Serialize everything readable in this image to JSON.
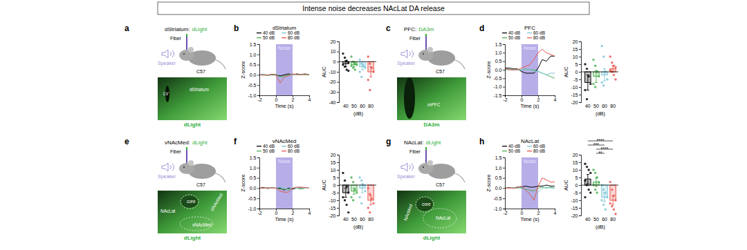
{
  "title": "Intense noise decreases NAcLat DA release",
  "schematics": [
    {
      "panel": "a",
      "header": "dStriatum:",
      "sensor": "dLight",
      "fiber": "Fiber",
      "speaker": "Speaker",
      "strain": "C57",
      "image_labels": [
        "LV",
        "dStriatum"
      ]
    },
    {
      "panel": "c",
      "header": "PFC:",
      "sensor": "DA3m",
      "fiber": "Fiber",
      "speaker": "Speaker",
      "strain": "C57",
      "image_labels": [
        "mPFC"
      ]
    },
    {
      "panel": "e",
      "header": "vNAcMed:",
      "sensor": "dLight",
      "fiber": "Fiber",
      "speaker": "Speaker",
      "strain": "C57",
      "image_labels": [
        "NAcLat",
        "core",
        "dNAcMed",
        "vNAcMed"
      ]
    },
    {
      "panel": "g",
      "header": "NAcLat:",
      "sensor": "dLight",
      "fiber": "Fiber",
      "speaker": "Speaker",
      "strain": "C57",
      "image_labels": [
        "NAcMed",
        "core",
        "NAcLat"
      ]
    }
  ],
  "chart_data": [
    {
      "panel": "b",
      "type": "line",
      "title": "dStriatum",
      "xlabel": "Time (s)",
      "ylabel": "Z-score",
      "legend": "top",
      "x": [
        -2,
        -1.5,
        -1,
        -0.5,
        0,
        0.5,
        1,
        1.5,
        2,
        2.5,
        3,
        3.5,
        4
      ],
      "xlim": [
        -2,
        4
      ],
      "xticks": [
        -2,
        0,
        2,
        4
      ],
      "ylim": [
        -1,
        1.5
      ],
      "yticks": [
        {
          "value": -1,
          "label": "-1.0"
        },
        -0.5,
        {
          "value": 0,
          "label": "0.0"
        },
        0.5,
        {
          "value": 1,
          "label": "1.0"
        },
        1.5
      ],
      "shade": {
        "label": "Noise",
        "x0": 0,
        "x1": 2
      },
      "series": [
        {
          "name": "40 dB",
          "color": "#000000",
          "values": [
            0,
            0.02,
            -0.02,
            0.03,
            0,
            -0.05,
            0,
            0.05,
            0,
            0.05,
            0.02,
            0.05,
            0
          ]
        },
        {
          "name": "50 dB",
          "color": "#4caf50",
          "values": [
            0,
            0,
            -0.03,
            0,
            0.02,
            -0.1,
            -0.05,
            0,
            0.03,
            0,
            0.02,
            0,
            0
          ]
        },
        {
          "name": "60 dB",
          "color": "#7cc6d6",
          "values": [
            0,
            0.02,
            0,
            -0.02,
            -0.02,
            -0.3,
            -0.15,
            -0.05,
            0,
            0.03,
            0,
            0.05,
            0.02
          ]
        },
        {
          "name": "80 dB",
          "color": "#e8574f",
          "values": [
            0,
            -0.02,
            0,
            0.02,
            0,
            -0.4,
            -0.1,
            -0.05,
            0.05,
            0.02,
            0,
            0.03,
            0.02
          ]
        }
      ]
    },
    {
      "panel": "b",
      "type": "bar",
      "xlabel": "(dB)",
      "ylabel": "AUC",
      "categories": [
        "40",
        "50",
        "60",
        "80"
      ],
      "values": [
        -2,
        -3,
        -5,
        -10
      ],
      "error": [
        3,
        2,
        3,
        5
      ],
      "points": [
        [
          8,
          4,
          1,
          -1,
          -3,
          -5,
          -8,
          -9
        ],
        [
          5,
          0,
          -2,
          -3,
          -4,
          -6,
          -8
        ],
        [
          2,
          -2,
          -4,
          -6,
          -10,
          -15
        ],
        [
          5,
          -2,
          -6,
          -10,
          -18,
          -28
        ]
      ],
      "colors": [
        "#000000",
        "#4caf50",
        "#7cc6d6",
        "#e8574f"
      ],
      "ylim": [
        -40,
        20
      ],
      "yticks": [
        -40,
        -30,
        -20,
        -10,
        0,
        10,
        20
      ]
    },
    {
      "panel": "d",
      "type": "line",
      "title": "PFC",
      "xlabel": "Time (s)",
      "ylabel": "Z-score",
      "legend": "top",
      "x": [
        -2,
        -1.5,
        -1,
        -0.5,
        0,
        0.5,
        1,
        1.5,
        2,
        2.5,
        3,
        3.5,
        4
      ],
      "xlim": [
        -2,
        4
      ],
      "xticks": [
        -2,
        0,
        2,
        4
      ],
      "ylim": [
        -1.5,
        1.5
      ],
      "yticks": [
        -1.5,
        {
          "value": -1,
          "label": "-1.0"
        },
        -0.5,
        {
          "value": 0,
          "label": "0.0"
        },
        0.5,
        {
          "value": 1,
          "label": "1.0"
        },
        1.5
      ],
      "shade": {
        "label": "Noise",
        "x0": 0,
        "x1": 2
      },
      "series": [
        {
          "name": "40 dB",
          "color": "#000000",
          "values": [
            0.1,
            0.1,
            0.05,
            0.05,
            -0.1,
            -0.2,
            -0.2,
            -0.2,
            0.1,
            0.6,
            0.5,
            0.8,
            0.8
          ]
        },
        {
          "name": "50 dB",
          "color": "#4caf50",
          "values": [
            0,
            0,
            0,
            0,
            0,
            0.05,
            0,
            0,
            -0.1,
            -0.2,
            -0.3,
            -0.4,
            -0.5
          ]
        },
        {
          "name": "60 dB",
          "color": "#7cc6d6",
          "values": [
            0,
            0.05,
            0,
            0,
            0,
            0,
            0,
            -0.1,
            -0.1,
            -0.2,
            -0.3,
            -0.2,
            -0.2
          ]
        },
        {
          "name": "80 dB",
          "color": "#e8574f",
          "values": [
            0.1,
            0,
            0,
            0,
            0.1,
            0.2,
            0.3,
            0.6,
            1.0,
            1.2,
            1.0,
            0.9,
            0.8
          ]
        }
      ]
    },
    {
      "panel": "d",
      "type": "bar",
      "xlabel": "(dB)",
      "ylabel": "AUC",
      "categories": [
        "40",
        "50",
        "60",
        "80"
      ],
      "values": [
        -7,
        -3,
        -2,
        2
      ],
      "error": [
        5,
        4,
        4,
        2
      ],
      "points": [
        [
          5,
          2,
          -3,
          -8,
          -12,
          -18
        ],
        [
          8,
          4,
          0,
          -3,
          -8,
          -10
        ],
        [
          17,
          10,
          0,
          -5,
          -7,
          -9
        ],
        [
          10,
          6,
          4,
          3,
          1,
          0,
          -2,
          -5
        ]
      ],
      "colors": [
        "#000000",
        "#4caf50",
        "#7cc6d6",
        "#e8574f"
      ],
      "ylim": [
        -20,
        20
      ],
      "yticks": [
        -20,
        -15,
        -10,
        -5,
        0,
        5,
        10,
        15,
        20
      ]
    },
    {
      "panel": "f",
      "type": "line",
      "title": "vNAcMed",
      "xlabel": "Time (s)",
      "ylabel": "Z-score",
      "legend": "top",
      "x": [
        -2,
        -1.5,
        -1,
        -0.5,
        0,
        0.5,
        1,
        1.5,
        2,
        2.5,
        3,
        3.5,
        4
      ],
      "xlim": [
        -2,
        4
      ],
      "xticks": [
        -2,
        0,
        2,
        4
      ],
      "ylim": [
        -1,
        1.5
      ],
      "yticks": [
        {
          "value": -1,
          "label": "-1.0"
        },
        -0.5,
        {
          "value": 0,
          "label": "0.0"
        },
        0.5,
        {
          "value": 1,
          "label": "1.0"
        },
        1.5
      ],
      "shade": {
        "label": "Noise",
        "x0": 0,
        "x1": 2
      },
      "series": [
        {
          "name": "40 dB",
          "color": "#000000",
          "values": [
            0,
            0.03,
            -0.02,
            0.02,
            0,
            0,
            -0.1,
            0,
            -0.05,
            0,
            0.02,
            0,
            0
          ]
        },
        {
          "name": "50 dB",
          "color": "#4caf50",
          "values": [
            0,
            0,
            0.02,
            0,
            0,
            -0.05,
            -0.05,
            -0.1,
            0,
            0,
            -0.05,
            0,
            0
          ]
        },
        {
          "name": "60 dB",
          "color": "#7cc6d6",
          "values": [
            0,
            0,
            0,
            0.02,
            0,
            0.05,
            0,
            -0.05,
            0,
            0,
            0.02,
            0,
            0
          ]
        },
        {
          "name": "80 dB",
          "color": "#e8574f",
          "values": [
            0,
            0,
            0.02,
            0,
            0,
            -0.15,
            -0.2,
            -0.2,
            0,
            0.05,
            0.05,
            0.03,
            0
          ]
        }
      ]
    },
    {
      "panel": "f",
      "type": "bar",
      "xlabel": "(dB)",
      "ylabel": "AUC",
      "categories": [
        "40",
        "50",
        "60",
        "80"
      ],
      "values": [
        -5,
        -4,
        -2,
        -10
      ],
      "error": [
        3,
        2,
        3,
        3
      ],
      "points": [
        [
          8,
          3,
          -1,
          -5,
          -8,
          -10,
          -13,
          -18
        ],
        [
          5,
          2,
          -3,
          -5,
          -8,
          -10
        ],
        [
          5,
          3,
          0,
          -4,
          -8,
          -12
        ],
        [
          -2,
          -6,
          -9,
          -12,
          -15,
          -18
        ]
      ],
      "colors": [
        "#000000",
        "#4caf50",
        "#7cc6d6",
        "#e8574f"
      ],
      "ylim": [
        -20,
        20
      ],
      "yticks": [
        -20,
        -15,
        -10,
        -5,
        0,
        5,
        10,
        15,
        20
      ]
    },
    {
      "panel": "h",
      "type": "line",
      "title": "NAcLat",
      "xlabel": "Time (s)",
      "ylabel": "Z-score",
      "legend": "top",
      "x": [
        -2,
        -1.5,
        -1,
        -0.5,
        0,
        0.5,
        1,
        1.5,
        2,
        2.5,
        3,
        3.5,
        4
      ],
      "xlim": [
        -2,
        4
      ],
      "xticks": [
        -2,
        0,
        2,
        4
      ],
      "ylim": [
        -1,
        1.5
      ],
      "yticks": [
        {
          "value": -1,
          "label": "-1.0"
        },
        -0.5,
        {
          "value": 0,
          "label": "0.0"
        },
        0.5,
        {
          "value": 1,
          "label": "1.0"
        },
        1.5
      ],
      "shade": {
        "label": "Noise",
        "x0": 0,
        "x1": 2
      },
      "series": [
        {
          "name": "40 dB",
          "color": "#000000",
          "values": [
            0,
            0.02,
            0,
            0.05,
            0.05,
            0.1,
            0.05,
            0.05,
            0.1,
            0.1,
            0.15,
            0.1,
            0.1
          ]
        },
        {
          "name": "50 dB",
          "color": "#4caf50",
          "values": [
            0,
            0,
            0,
            0.02,
            0,
            -0.05,
            -0.1,
            -0.15,
            0,
            0.05,
            0,
            0.05,
            0
          ]
        },
        {
          "name": "60 dB",
          "color": "#7cc6d6",
          "values": [
            0,
            0,
            0.02,
            0,
            0.05,
            -0.1,
            -0.3,
            -0.5,
            -0.2,
            0,
            0.05,
            0,
            0
          ]
        },
        {
          "name": "80 dB",
          "color": "#e8574f",
          "values": [
            0,
            0,
            0,
            0.02,
            0.1,
            -0.1,
            -0.3,
            -0.6,
            0.1,
            0.5,
            0.4,
            0.3,
            0.3
          ]
        }
      ]
    },
    {
      "panel": "h",
      "type": "bar",
      "xlabel": "(dB)",
      "ylabel": "AUC",
      "categories": [
        "40",
        "50",
        "60",
        "80"
      ],
      "values": [
        4,
        2,
        -8,
        -10
      ],
      "error": [
        3,
        3,
        3,
        3
      ],
      "points": [
        [
          14,
          12,
          10,
          8,
          3,
          0,
          -3,
          -5,
          -8
        ],
        [
          10,
          8,
          5,
          2,
          0,
          -3,
          -5
        ],
        [
          0,
          -3,
          -5,
          -8,
          -10,
          -13,
          -16
        ],
        [
          2,
          -3,
          -7,
          -10,
          -12,
          -14,
          -16,
          -19
        ]
      ],
      "colors": [
        "#000000",
        "#4caf50",
        "#7cc6d6",
        "#e8574f"
      ],
      "ylim": [
        -20,
        20
      ],
      "yticks": [
        -20,
        -15,
        -10,
        -5,
        0,
        5,
        10,
        15,
        20
      ],
      "significance": [
        {
          "pair": [
            "40",
            "80"
          ],
          "label": "****"
        },
        {
          "pair": [
            "40",
            "60"
          ],
          "label": "***"
        },
        {
          "pair": [
            "50",
            "80"
          ],
          "label": "****"
        },
        {
          "pair": [
            "50",
            "60"
          ],
          "label": "**"
        }
      ]
    }
  ]
}
